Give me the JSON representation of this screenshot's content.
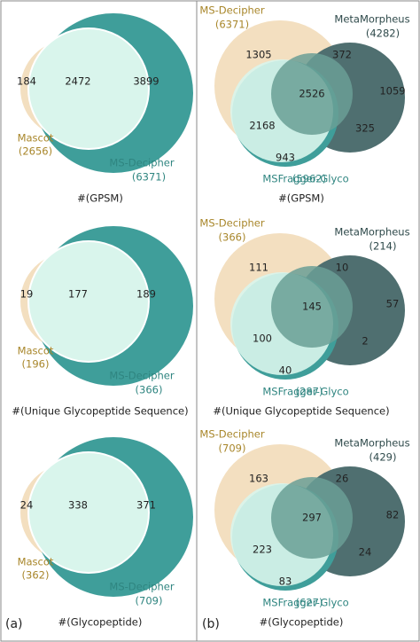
{
  "panels": [
    {
      "label": "(a)",
      "diagrams": [
        {
          "caption": "#(GPSM)",
          "sets": [
            {
              "name": "Mascot",
              "size": "(2656)"
            },
            {
              "name": "MS-Decipher",
              "size": "(6371)"
            }
          ],
          "regions": [
            184,
            2472,
            3899
          ]
        },
        {
          "caption": "#(Unique Glycopeptide Sequence)",
          "sets": [
            {
              "name": "Mascot",
              "size": "(196)"
            },
            {
              "name": "MS-Decipher",
              "size": "(366)"
            }
          ],
          "regions": [
            19,
            177,
            189
          ]
        },
        {
          "caption": "#(Glycopeptide)",
          "sets": [
            {
              "name": "Mascot",
              "size": "(362)"
            },
            {
              "name": "MS-Decipher",
              "size": "(709)"
            }
          ],
          "regions": [
            24,
            338,
            371
          ]
        }
      ]
    },
    {
      "label": "(b)",
      "diagrams": [
        {
          "caption": "#(GPSM)",
          "sets": [
            {
              "name": "MS-Decipher",
              "size": "(6371)"
            },
            {
              "name": "MetaMorpheus",
              "size": "(4282)"
            },
            {
              "name": "MSFragger-Glyco",
              "size": "(5962)"
            }
          ],
          "regions": [
            1305,
            372,
            1059,
            2526,
            2168,
            325,
            943
          ]
        },
        {
          "caption": "#(Unique Glycopeptide Sequence)",
          "sets": [
            {
              "name": "MS-Decipher",
              "size": "(366)"
            },
            {
              "name": "MetaMorpheus",
              "size": "(214)"
            },
            {
              "name": "MSFragger-Glyco",
              "size": "(287)"
            }
          ],
          "regions": [
            111,
            10,
            57,
            145,
            100,
            2,
            40
          ]
        },
        {
          "caption": "#(Glycopeptide)",
          "sets": [
            {
              "name": "MS-Decipher",
              "size": "(709)"
            },
            {
              "name": "MetaMorpheus",
              "size": "(429)"
            },
            {
              "name": "MSFragger-Glyco",
              "size": "(627)"
            }
          ],
          "regions": [
            163,
            26,
            82,
            297,
            223,
            24,
            83
          ]
        }
      ]
    }
  ]
}
